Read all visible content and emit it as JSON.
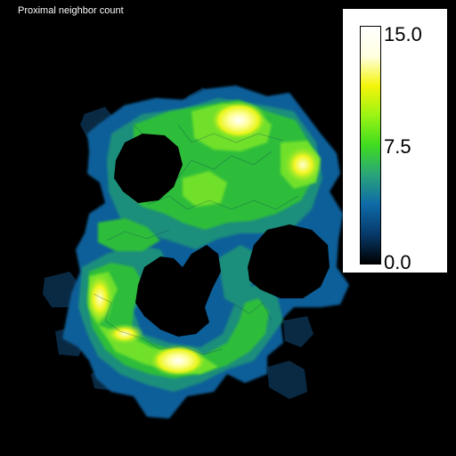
{
  "title": "Proximal neighbor count",
  "colorbar": {
    "max_label": "15.0",
    "mid_label": "7.5",
    "min_label": "0.0",
    "stops": [
      "#000000",
      "#063a6a",
      "#0e6aa8",
      "#2aa47a",
      "#3fdc20",
      "#9af414",
      "#f4f40a",
      "#ffffe0",
      "#ffffff"
    ]
  },
  "colors": {
    "background": "#000000",
    "low": "#0b2a44",
    "blue": "#0f5e99",
    "teal": "#1f8e7c",
    "green": "#2ebd3b",
    "lime": "#6fe02a",
    "yellow": "#e9f51a",
    "white": "#ffffd8"
  }
}
